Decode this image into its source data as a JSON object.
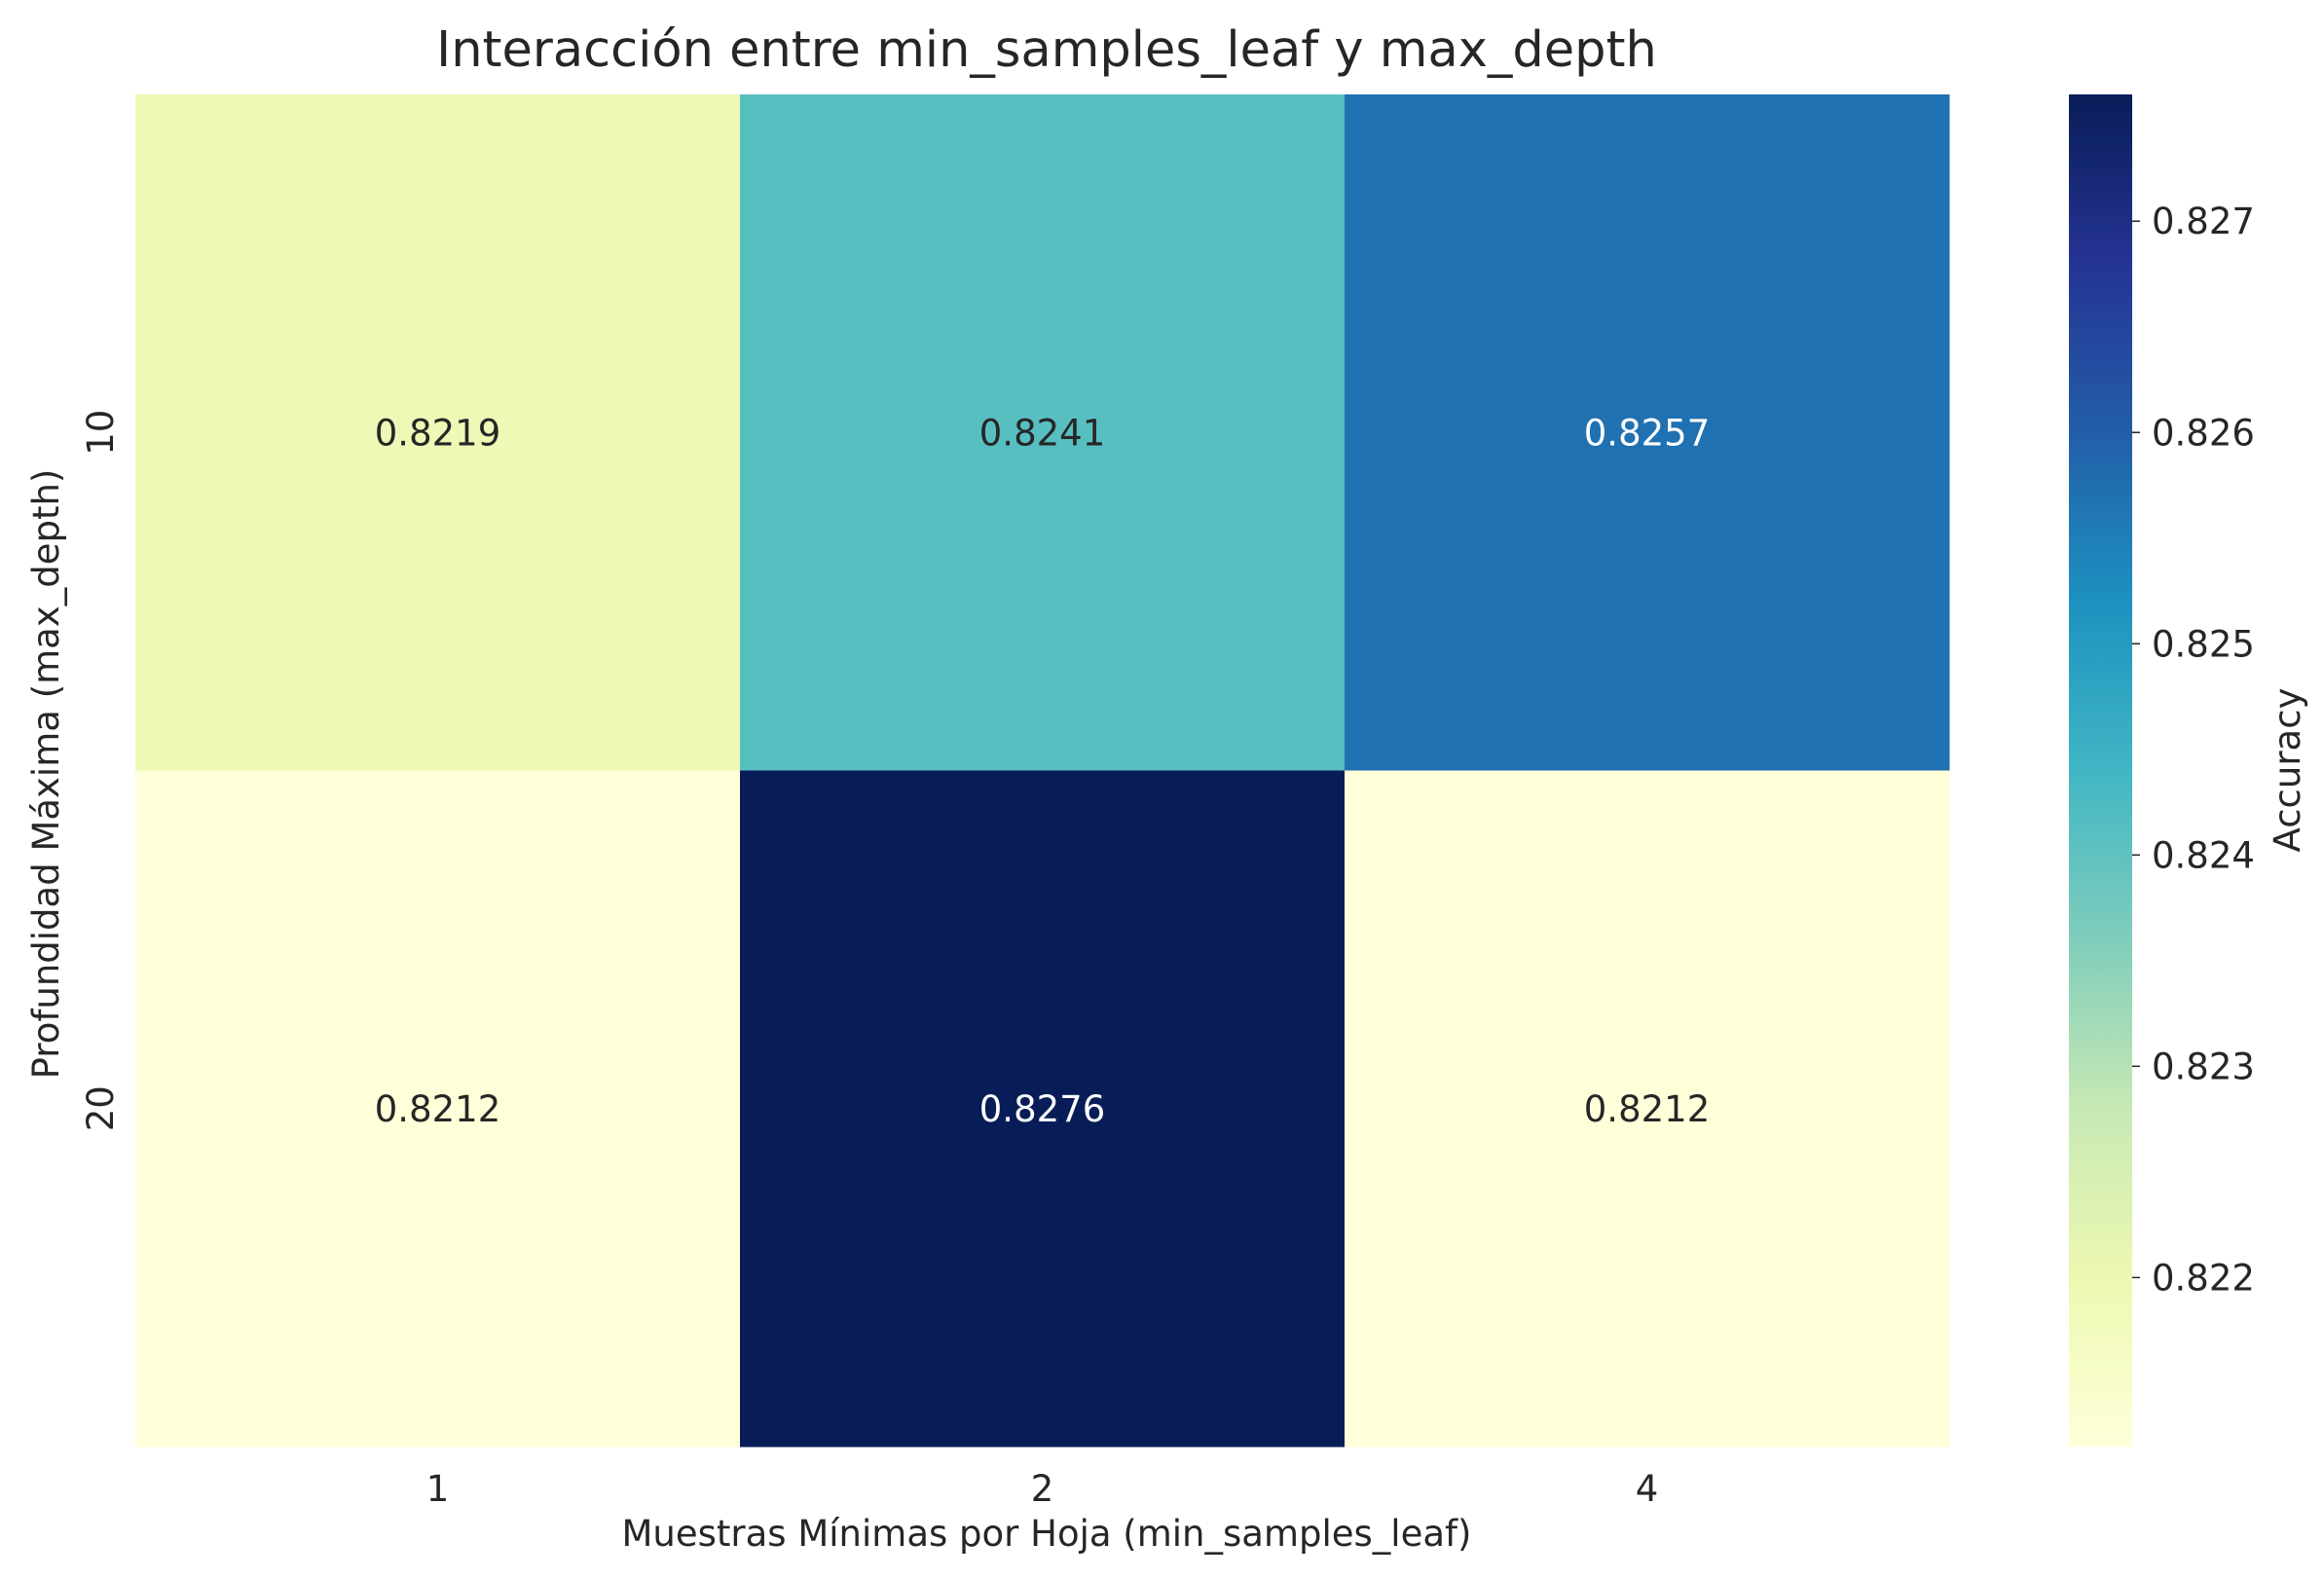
{
  "chart_data": {
    "type": "heatmap",
    "title": "Interacción entre min_samples_leaf y max_depth",
    "xlabel": "Muestras Mínimas por Hoja (min_samples_leaf)",
    "ylabel": "Profundidad Máxima (max_depth)",
    "x_categories": [
      "1",
      "2",
      "4"
    ],
    "y_categories": [
      "10",
      "20"
    ],
    "values": [
      [
        0.8219,
        0.8241,
        0.8257
      ],
      [
        0.8212,
        0.8276,
        0.8212
      ]
    ],
    "value_labels": [
      [
        "0.8219",
        "0.8241",
        "0.8257"
      ],
      [
        "0.8212",
        "0.8276",
        "0.8212"
      ]
    ],
    "colormap": "YlGnBu",
    "colorbar": {
      "label": "Accuracy",
      "vmin": 0.8212,
      "vmax": 0.8276,
      "ticks": [
        0.822,
        0.823,
        0.824,
        0.825,
        0.826,
        0.827
      ],
      "tick_labels": [
        "0.822",
        "0.823",
        "0.824",
        "0.825",
        "0.826",
        "0.827"
      ]
    },
    "grid": false
  },
  "colors": {
    "ylgnbu": [
      "#ffffd9",
      "#edf8b1",
      "#c7e9b4",
      "#7fcdbb",
      "#41b6c4",
      "#1d91c0",
      "#225ea8",
      "#253494",
      "#081d58"
    ],
    "text_dark": "#262626",
    "text_light": "#ffffff"
  }
}
